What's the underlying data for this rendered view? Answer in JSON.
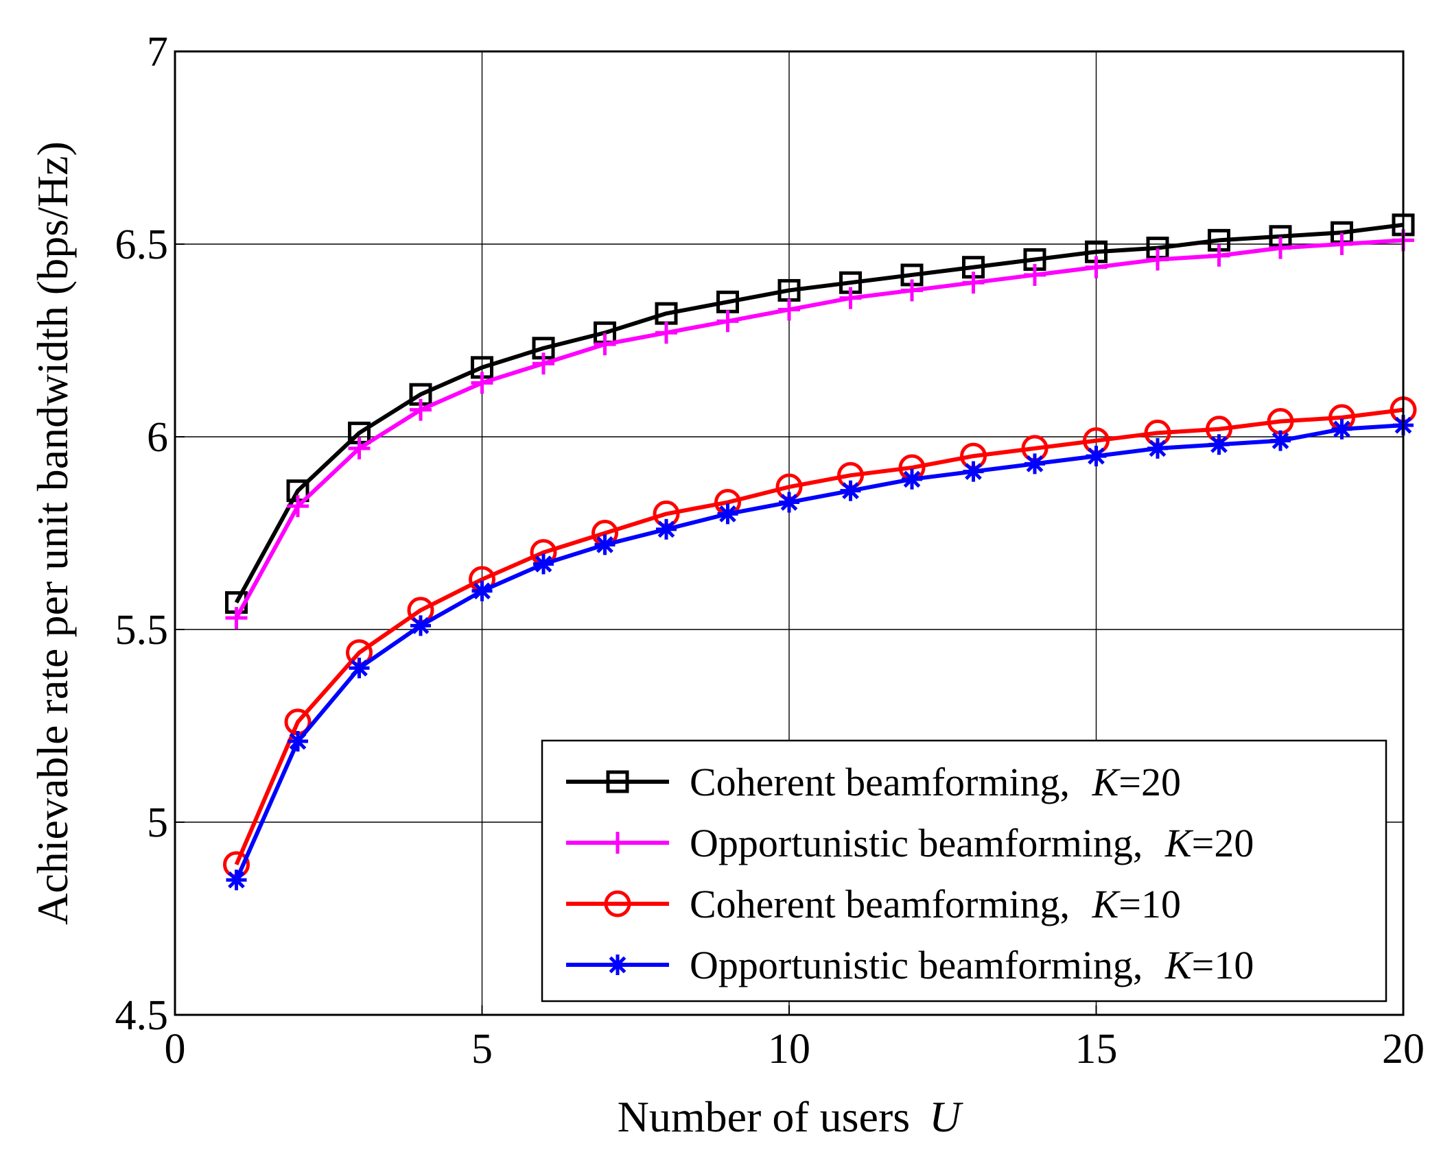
{
  "chart_data": {
    "type": "line",
    "xlabel": "Number of users",
    "xlabel_var": "U",
    "ylabel": "Achievable rate per unit bandwidth (bps/Hz)",
    "xlim": [
      0,
      20
    ],
    "ylim": [
      4.5,
      7
    ],
    "xticks": [
      0,
      5,
      10,
      15,
      20
    ],
    "yticks": [
      4.5,
      5,
      5.5,
      6,
      6.5,
      7
    ],
    "xtick_labels": [
      "0",
      "5",
      "10",
      "15",
      "20"
    ],
    "ytick_labels": [
      "4.5",
      "5",
      "5.5",
      "6",
      "6.5",
      "7"
    ],
    "grid": true,
    "legend_position": "bottom-right",
    "x": [
      1,
      2,
      3,
      4,
      5,
      6,
      7,
      8,
      9,
      10,
      11,
      12,
      13,
      14,
      15,
      16,
      17,
      18,
      19,
      20
    ],
    "series": [
      {
        "name": "Coherent beamforming, K=20",
        "label_text": "Coherent beamforming, ",
        "label_var": "K",
        "label_value": "=20",
        "color": "#000000",
        "marker": "square",
        "values": [
          5.57,
          5.86,
          6.01,
          6.11,
          6.18,
          6.23,
          6.27,
          6.32,
          6.35,
          6.38,
          6.4,
          6.42,
          6.44,
          6.46,
          6.48,
          6.49,
          6.51,
          6.52,
          6.53,
          6.55
        ]
      },
      {
        "name": "Opportunistic beamforming, K=20",
        "label_text": "Opportunistic beamforming, ",
        "label_var": "K",
        "label_value": "=20",
        "color": "#ff00ff",
        "marker": "plus",
        "values": [
          5.53,
          5.82,
          5.97,
          6.07,
          6.14,
          6.19,
          6.24,
          6.27,
          6.3,
          6.33,
          6.36,
          6.38,
          6.4,
          6.42,
          6.44,
          6.46,
          6.47,
          6.49,
          6.5,
          6.51
        ]
      },
      {
        "name": "Coherent beamforming, K=10",
        "label_text": "Coherent beamforming, ",
        "label_var": "K",
        "label_value": "=10",
        "color": "#ff0000",
        "marker": "circle",
        "values": [
          4.89,
          5.26,
          5.44,
          5.55,
          5.63,
          5.7,
          5.75,
          5.8,
          5.83,
          5.87,
          5.9,
          5.92,
          5.95,
          5.97,
          5.99,
          6.01,
          6.02,
          6.04,
          6.05,
          6.07
        ]
      },
      {
        "name": "Opportunistic beamforming, K=10",
        "label_text": "Opportunistic beamforming, ",
        "label_var": "K",
        "label_value": "=10",
        "color": "#0000ff",
        "marker": "asterisk",
        "values": [
          4.85,
          5.21,
          5.4,
          5.51,
          5.6,
          5.67,
          5.72,
          5.76,
          5.8,
          5.83,
          5.86,
          5.89,
          5.91,
          5.93,
          5.95,
          5.97,
          5.98,
          5.99,
          6.02,
          6.03
        ]
      }
    ]
  }
}
